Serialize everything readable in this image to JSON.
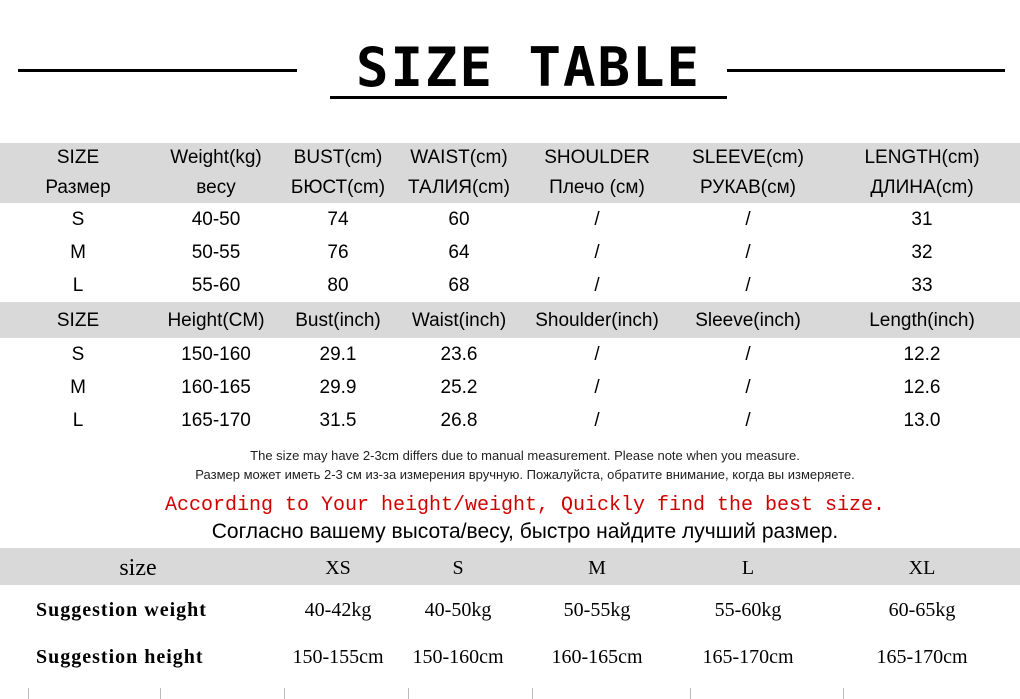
{
  "title": "SIZE TABLE",
  "table_cm": {
    "headers": [
      [
        "SIZE",
        "Размер"
      ],
      [
        "Weight(kg)",
        "весу"
      ],
      [
        "BUST(cm)",
        "БЮСТ(cm)"
      ],
      [
        "WAIST(cm)",
        "ТАЛИЯ(cm)"
      ],
      [
        "SHOULDER",
        "Плечо (см)"
      ],
      [
        "SLEEVE(cm)",
        "РУКАВ(см)"
      ],
      [
        "LENGTH(cm)",
        "ДЛИНА(cm)"
      ]
    ],
    "rows": [
      [
        "S",
        "40-50",
        "74",
        "60",
        "/",
        "/",
        "31"
      ],
      [
        "M",
        "50-55",
        "76",
        "64",
        "/",
        "/",
        "32"
      ],
      [
        "L",
        "55-60",
        "80",
        "68",
        "/",
        "/",
        "33"
      ]
    ]
  },
  "table_inch": {
    "headers": [
      "SIZE",
      "Height(CM)",
      "Bust(inch)",
      "Waist(inch)",
      "Shoulder(inch)",
      "Sleeve(inch)",
      "Length(inch)"
    ],
    "rows": [
      [
        "S",
        "150-160",
        "29.1",
        "23.6",
        "/",
        "/",
        "12.2"
      ],
      [
        "M",
        "160-165",
        "29.9",
        "25.2",
        "/",
        "/",
        "12.6"
      ],
      [
        "L",
        "165-170",
        "31.5",
        "26.8",
        "/",
        "/",
        "13.0"
      ]
    ]
  },
  "notes": {
    "en": "The size may have 2-3cm differs due to manual measurement. Please note when you measure.",
    "ru": "Размер может иметь 2-3 см из-за измерения вручную. Пожалуйста, обратите внимание, когда вы измеряете."
  },
  "advice": {
    "en": "According to Your height/weight, Quickly find the best size.",
    "ru": "Согласно вашему высота/весу, быстро найдите лучший размер.",
    "en_color": "#d00000"
  },
  "suggestion": {
    "headers": [
      "size",
      "XS",
      "S",
      "M",
      "L",
      "XL"
    ],
    "rows": [
      [
        "Suggestion weight",
        "40-42kg",
        "40-50kg",
        "50-55kg",
        "55-60kg",
        "60-65kg"
      ],
      [
        "Suggestion height",
        "150-155cm",
        "150-160cm",
        "160-165cm",
        "165-170cm",
        "165-170cm"
      ]
    ]
  }
}
